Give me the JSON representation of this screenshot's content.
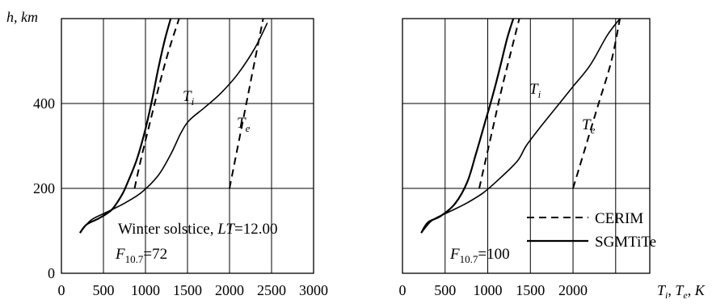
{
  "y_axis_label": "h, km",
  "chart_data": [
    {
      "type": "line",
      "panel": "left",
      "x_ticks": [
        0,
        500,
        1000,
        1500,
        2000,
        2500,
        3000
      ],
      "y_ticks": [
        0,
        200,
        400
      ],
      "xlim": [
        0,
        3000
      ],
      "ylim": [
        0,
        600
      ],
      "grid": true,
      "annotation": "Winter solstice, LT=12.00",
      "flux": "F10.7=72",
      "curve_labels": {
        "ti": "Ti",
        "te": "Te"
      },
      "series": [
        {
          "style": "solid",
          "param": "Ti",
          "x": [
            220,
            300,
            450,
            600,
            720,
            790,
            900,
            1000,
            1080,
            1150,
            1230,
            1300
          ],
          "y": [
            95,
            115,
            130,
            150,
            185,
            215,
            270,
            340,
            410,
            480,
            550,
            600
          ]
        },
        {
          "style": "dashed",
          "param": "Ti",
          "x": [
            870,
            960,
            1060,
            1160,
            1270,
            1400
          ],
          "y": [
            200,
            280,
            360,
            440,
            520,
            600
          ]
        },
        {
          "style": "solid",
          "param": "Te",
          "x": [
            220,
            350,
            550,
            750,
            950,
            1150,
            1300,
            1420,
            1520,
            1700,
            1900,
            2100,
            2300,
            2450
          ],
          "y": [
            95,
            125,
            145,
            165,
            190,
            230,
            280,
            330,
            360,
            390,
            425,
            470,
            530,
            590
          ]
        },
        {
          "style": "dashed",
          "param": "Te",
          "x": [
            2000,
            2100,
            2200,
            2300,
            2400
          ],
          "y": [
            200,
            300,
            400,
            500,
            600
          ]
        }
      ]
    },
    {
      "type": "line",
      "panel": "right",
      "x_ticks": [
        0,
        500,
        1000,
        1500,
        2000
      ],
      "x_axis_label": "Ti, Te, K",
      "xlim": [
        0,
        3000
      ],
      "ylim": [
        0,
        600
      ],
      "grid": true,
      "flux": "F10.7=100",
      "curve_labels": {
        "ti": "Ti",
        "te": "Te"
      },
      "legend": [
        {
          "label": "CERIM",
          "style": "dashed"
        },
        {
          "label": "SGMTiTe",
          "style": "solid"
        }
      ],
      "series": [
        {
          "style": "solid",
          "param": "Ti",
          "x": [
            220,
            300,
            450,
            620,
            760,
            860,
            960,
            1060,
            1150,
            1230,
            1300
          ],
          "y": [
            95,
            120,
            135,
            165,
            215,
            280,
            350,
            420,
            490,
            555,
            600
          ]
        },
        {
          "style": "dashed",
          "param": "Ti",
          "x": [
            900,
            990,
            1080,
            1170,
            1270,
            1370
          ],
          "y": [
            200,
            280,
            360,
            440,
            520,
            600
          ]
        },
        {
          "style": "solid",
          "param": "Te",
          "x": [
            220,
            350,
            550,
            750,
            950,
            1150,
            1350,
            1450,
            1600,
            1800,
            2000,
            2200,
            2400,
            2550
          ],
          "y": [
            95,
            125,
            145,
            165,
            190,
            225,
            265,
            300,
            340,
            390,
            440,
            490,
            560,
            600
          ]
        },
        {
          "style": "dashed",
          "param": "Te",
          "x": [
            2000,
            2150,
            2300,
            2450,
            2550
          ],
          "y": [
            200,
            300,
            400,
            500,
            600
          ]
        }
      ]
    }
  ]
}
